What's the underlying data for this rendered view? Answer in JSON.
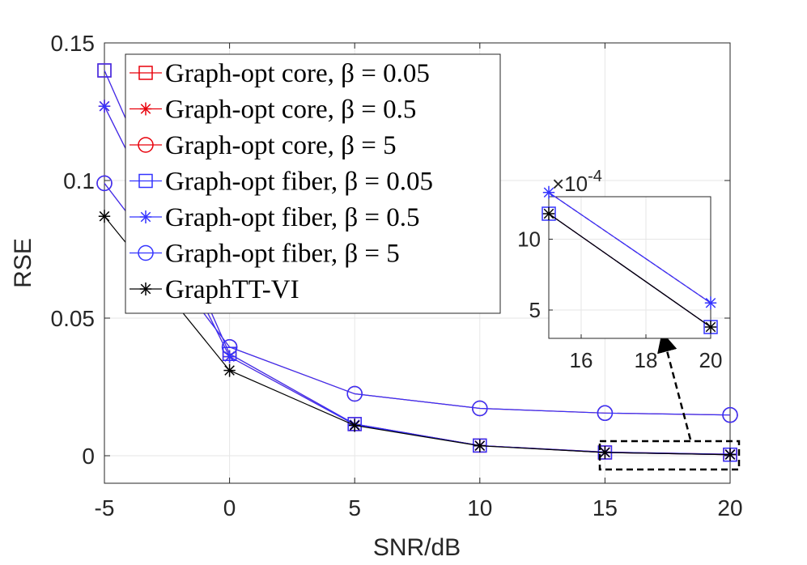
{
  "chart_data": {
    "type": "line",
    "xlabel": "SNR/dB",
    "ylabel": "RSE",
    "xlim": [
      -5,
      20
    ],
    "ylim": [
      -0.01,
      0.15
    ],
    "xticks": [
      "-5",
      "0",
      "5",
      "10",
      "15",
      "20"
    ],
    "yticks": [
      "0",
      "0.05",
      "0.1",
      "0.15"
    ],
    "grid": true,
    "legend_location": "top-left",
    "x": [
      -5,
      0,
      5,
      10,
      15,
      20
    ],
    "series": [
      {
        "name": "Graph-opt core, ",
        "beta": "β = 0.05",
        "color": "#e8000b",
        "marker": "square",
        "values": [
          0.14,
          0.037,
          0.0115,
          0.0037,
          0.00118,
          0.00038
        ]
      },
      {
        "name": "Graph-opt core, ",
        "beta": "β = 0.5",
        "color": "#e8000b",
        "marker": "asterisk",
        "values": [
          0.127,
          0.036,
          0.0113,
          0.0037,
          0.00133,
          0.00055
        ]
      },
      {
        "name": "Graph-opt core, ",
        "beta": "β = 5",
        "color": "#e8000b",
        "marker": "circle",
        "values": [
          0.099,
          0.0395,
          0.0225,
          0.0172,
          0.0155,
          0.0148
        ]
      },
      {
        "name": "Graph-opt fiber, ",
        "beta": "β = 0.05",
        "color": "#3333ff",
        "marker": "square",
        "values": [
          0.14,
          0.037,
          0.0115,
          0.0037,
          0.00118,
          0.00038
        ]
      },
      {
        "name": "Graph-opt fiber, ",
        "beta": "β = 0.5",
        "color": "#3333ff",
        "marker": "asterisk",
        "values": [
          0.127,
          0.036,
          0.0113,
          0.0037,
          0.00133,
          0.00055
        ]
      },
      {
        "name": "Graph-opt fiber, ",
        "beta": "β = 5",
        "color": "#3333ff",
        "marker": "circle",
        "values": [
          0.099,
          0.0395,
          0.0225,
          0.0172,
          0.0155,
          0.0148
        ]
      },
      {
        "name": "GraphTT-VI",
        "beta": "",
        "color": "#000000",
        "marker": "asterisk",
        "values": [
          0.087,
          0.031,
          0.011,
          0.0036,
          0.00118,
          0.00038
        ]
      }
    ],
    "inset": {
      "xlim": [
        15,
        20
      ],
      "ylim": [
        3,
        13
      ],
      "xticks": [
        "16",
        "18",
        "20"
      ],
      "yticks": [
        "5",
        "10"
      ],
      "scale_label": "×10",
      "scale_exponent": "-4",
      "series": [
        {
          "name": "Graph-opt core/fiber, β = 0.05",
          "marker": "square",
          "x": [
            15,
            20
          ],
          "values": [
            11.8,
            3.8
          ]
        },
        {
          "name": "Graph-opt core/fiber, β = 0.5",
          "marker": "asterisk",
          "x": [
            15,
            20
          ],
          "values": [
            13.3,
            5.5
          ]
        },
        {
          "name": "GraphTT-VI",
          "marker": "asterisk",
          "x": [
            15,
            20
          ],
          "values": [
            11.8,
            3.8
          ]
        }
      ]
    }
  }
}
